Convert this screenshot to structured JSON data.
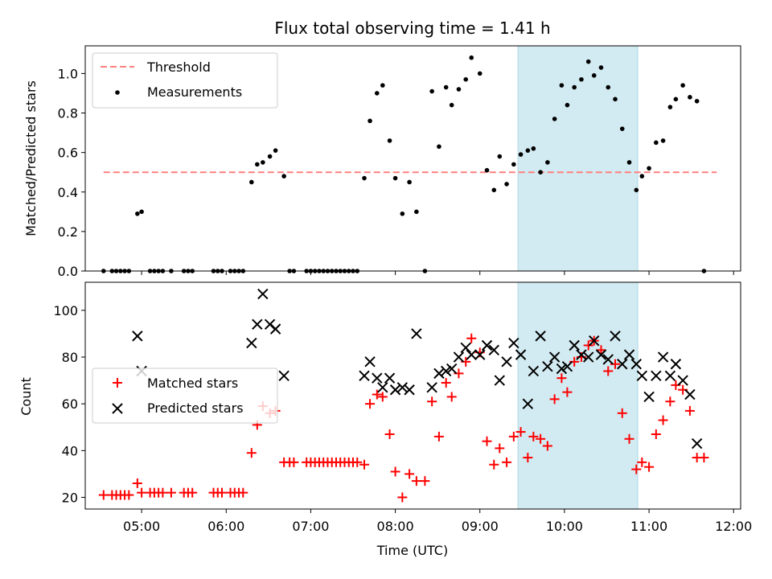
{
  "chart_data": [
    {
      "type": "scatter",
      "title": "Flux total observing time = 1.41 h",
      "xlabel": "",
      "ylabel": "Matched/Predicted stars",
      "xlim": [
        "04:20",
        "12:05"
      ],
      "ylim": [
        0,
        1.14
      ],
      "yticks": [
        "0.0",
        "0.2",
        "0.4",
        "0.6",
        "0.8",
        "1.0"
      ],
      "highlight_span": {
        "start": "09:27",
        "end": "10:52",
        "color": "#add8e6"
      },
      "threshold": {
        "name": "Threshold",
        "value": 0.5,
        "x_start": "04:33",
        "x_end": "11:48",
        "color": "#ff7f7f",
        "style": "dashed"
      },
      "legend": {
        "placement": "upper-left",
        "entries": [
          "Threshold",
          "Measurements"
        ]
      },
      "series": [
        {
          "name": "Measurements",
          "color": "#000000",
          "marker": "dot",
          "points": [
            [
              "04:33",
              0.0
            ],
            [
              "04:39",
              0.0
            ],
            [
              "04:42",
              0.0
            ],
            [
              "04:45",
              0.0
            ],
            [
              "04:48",
              0.0
            ],
            [
              "04:51",
              0.0
            ],
            [
              "04:57",
              0.29
            ],
            [
              "05:00",
              0.3
            ],
            [
              "05:06",
              0.0
            ],
            [
              "05:09",
              0.0
            ],
            [
              "05:12",
              0.0
            ],
            [
              "05:15",
              0.0
            ],
            [
              "05:21",
              0.0
            ],
            [
              "05:30",
              0.0
            ],
            [
              "05:33",
              0.0
            ],
            [
              "05:36",
              0.0
            ],
            [
              "05:51",
              0.0
            ],
            [
              "05:54",
              0.0
            ],
            [
              "05:57",
              0.0
            ],
            [
              "06:03",
              0.0
            ],
            [
              "06:06",
              0.0
            ],
            [
              "06:09",
              0.0
            ],
            [
              "06:12",
              0.0
            ],
            [
              "06:18",
              0.45
            ],
            [
              "06:22",
              0.54
            ],
            [
              "06:26",
              0.55
            ],
            [
              "06:31",
              0.58
            ],
            [
              "06:35",
              0.61
            ],
            [
              "06:41",
              0.48
            ],
            [
              "06:45",
              0.0
            ],
            [
              "06:48",
              0.0
            ],
            [
              "06:57",
              0.0
            ],
            [
              "07:00",
              0.0
            ],
            [
              "07:03",
              0.0
            ],
            [
              "07:06",
              0.0
            ],
            [
              "07:09",
              0.0
            ],
            [
              "07:12",
              0.0
            ],
            [
              "07:15",
              0.0
            ],
            [
              "07:18",
              0.0
            ],
            [
              "07:21",
              0.0
            ],
            [
              "07:24",
              0.0
            ],
            [
              "07:27",
              0.0
            ],
            [
              "07:30",
              0.0
            ],
            [
              "07:33",
              0.0
            ],
            [
              "07:38",
              0.47
            ],
            [
              "07:42",
              0.76
            ],
            [
              "07:47",
              0.9
            ],
            [
              "07:51",
              0.94
            ],
            [
              "07:56",
              0.66
            ],
            [
              "08:00",
              0.47
            ],
            [
              "08:05",
              0.29
            ],
            [
              "08:10",
              0.45
            ],
            [
              "08:15",
              0.3
            ],
            [
              "08:21",
              0.0
            ],
            [
              "08:26",
              0.91
            ],
            [
              "08:31",
              0.63
            ],
            [
              "08:36",
              0.93
            ],
            [
              "08:40",
              0.84
            ],
            [
              "08:45",
              0.92
            ],
            [
              "08:50",
              0.97
            ],
            [
              "08:54",
              1.08
            ],
            [
              "09:00",
              1.0
            ],
            [
              "09:05",
              0.51
            ],
            [
              "09:10",
              0.41
            ],
            [
              "09:14",
              0.58
            ],
            [
              "09:19",
              0.44
            ],
            [
              "09:24",
              0.54
            ],
            [
              "09:29",
              0.59
            ],
            [
              "09:34",
              0.61
            ],
            [
              "09:38",
              0.62
            ],
            [
              "09:43",
              0.5
            ],
            [
              "09:48",
              0.55
            ],
            [
              "09:53",
              0.77
            ],
            [
              "09:58",
              0.94
            ],
            [
              "10:02",
              0.84
            ],
            [
              "10:07",
              0.93
            ],
            [
              "10:12",
              0.97
            ],
            [
              "10:17",
              1.06
            ],
            [
              "10:21",
              0.99
            ],
            [
              "10:26",
              1.03
            ],
            [
              "10:31",
              0.93
            ],
            [
              "10:36",
              0.87
            ],
            [
              "10:41",
              0.72
            ],
            [
              "10:46",
              0.55
            ],
            [
              "10:51",
              0.41
            ],
            [
              "10:55",
              0.48
            ],
            [
              "11:00",
              0.52
            ],
            [
              "11:05",
              0.65
            ],
            [
              "11:10",
              0.66
            ],
            [
              "11:15",
              0.83
            ],
            [
              "11:19",
              0.87
            ],
            [
              "11:24",
              0.94
            ],
            [
              "11:29",
              0.88
            ],
            [
              "11:34",
              0.86
            ],
            [
              "11:39",
              0.0
            ]
          ]
        }
      ]
    },
    {
      "type": "scatter",
      "xlabel": "Time (UTC)",
      "ylabel": "Count",
      "xlim": [
        "04:20",
        "12:05"
      ],
      "ylim": [
        15,
        112
      ],
      "yticks": [
        "20",
        "40",
        "60",
        "80",
        "100"
      ],
      "xticks": [
        "05:00",
        "06:00",
        "07:00",
        "08:00",
        "09:00",
        "10:00",
        "11:00",
        "12:00"
      ],
      "highlight_span": {
        "start": "09:27",
        "end": "10:52",
        "color": "#add8e6"
      },
      "legend": {
        "placement": "center-left",
        "entries": [
          "Matched stars",
          "Predicted stars"
        ]
      },
      "series": [
        {
          "name": "Matched stars",
          "color": "#ff0000",
          "marker": "plus",
          "points": [
            [
              "04:33",
              21
            ],
            [
              "04:39",
              21
            ],
            [
              "04:42",
              21
            ],
            [
              "04:45",
              21
            ],
            [
              "04:48",
              21
            ],
            [
              "04:51",
              21
            ],
            [
              "04:57",
              26
            ],
            [
              "05:00",
              22
            ],
            [
              "05:06",
              22
            ],
            [
              "05:09",
              22
            ],
            [
              "05:12",
              22
            ],
            [
              "05:15",
              22
            ],
            [
              "05:21",
              22
            ],
            [
              "05:30",
              22
            ],
            [
              "05:33",
              22
            ],
            [
              "05:36",
              22
            ],
            [
              "05:51",
              22
            ],
            [
              "05:54",
              22
            ],
            [
              "05:57",
              22
            ],
            [
              "06:03",
              22
            ],
            [
              "06:06",
              22
            ],
            [
              "06:09",
              22
            ],
            [
              "06:12",
              22
            ],
            [
              "06:18",
              39
            ],
            [
              "06:22",
              51
            ],
            [
              "06:26",
              59
            ],
            [
              "06:31",
              56
            ],
            [
              "06:35",
              57
            ],
            [
              "06:41",
              35
            ],
            [
              "06:45",
              35
            ],
            [
              "06:48",
              35
            ],
            [
              "06:57",
              35
            ],
            [
              "07:00",
              35
            ],
            [
              "07:03",
              35
            ],
            [
              "07:06",
              35
            ],
            [
              "07:09",
              35
            ],
            [
              "07:12",
              35
            ],
            [
              "07:15",
              35
            ],
            [
              "07:18",
              35
            ],
            [
              "07:21",
              35
            ],
            [
              "07:24",
              35
            ],
            [
              "07:27",
              35
            ],
            [
              "07:30",
              35
            ],
            [
              "07:33",
              35
            ],
            [
              "07:38",
              34
            ],
            [
              "07:42",
              60
            ],
            [
              "07:47",
              64
            ],
            [
              "07:51",
              63
            ],
            [
              "07:56",
              47
            ],
            [
              "08:00",
              31
            ],
            [
              "08:05",
              20
            ],
            [
              "08:10",
              30
            ],
            [
              "08:15",
              27
            ],
            [
              "08:21",
              27
            ],
            [
              "08:26",
              61
            ],
            [
              "08:31",
              46
            ],
            [
              "08:36",
              69
            ],
            [
              "08:40",
              63
            ],
            [
              "08:45",
              73
            ],
            [
              "08:50",
              78
            ],
            [
              "08:54",
              88
            ],
            [
              "09:00",
              82
            ],
            [
              "09:05",
              44
            ],
            [
              "09:10",
              34
            ],
            [
              "09:14",
              41
            ],
            [
              "09:19",
              35
            ],
            [
              "09:24",
              46
            ],
            [
              "09:29",
              48
            ],
            [
              "09:34",
              37
            ],
            [
              "09:38",
              46
            ],
            [
              "09:43",
              45
            ],
            [
              "09:48",
              42
            ],
            [
              "09:53",
              62
            ],
            [
              "09:58",
              71
            ],
            [
              "10:02",
              65
            ],
            [
              "10:07",
              78
            ],
            [
              "10:12",
              80
            ],
            [
              "10:17",
              85
            ],
            [
              "10:21",
              87
            ],
            [
              "10:26",
              83
            ],
            [
              "10:31",
              74
            ],
            [
              "10:36",
              77
            ],
            [
              "10:41",
              56
            ],
            [
              "10:46",
              45
            ],
            [
              "10:51",
              32
            ],
            [
              "10:55",
              35
            ],
            [
              "11:00",
              33
            ],
            [
              "11:05",
              47
            ],
            [
              "11:10",
              53
            ],
            [
              "11:15",
              61
            ],
            [
              "11:19",
              68
            ],
            [
              "11:24",
              66
            ],
            [
              "11:29",
              57
            ],
            [
              "11:34",
              37
            ],
            [
              "11:39",
              37
            ]
          ]
        },
        {
          "name": "Predicted stars",
          "color": "#000000",
          "marker": "x",
          "points": [
            [
              "04:57",
              89
            ],
            [
              "05:00",
              74
            ],
            [
              "06:18",
              86
            ],
            [
              "06:22",
              94
            ],
            [
              "06:26",
              107
            ],
            [
              "06:31",
              94
            ],
            [
              "06:35",
              92
            ],
            [
              "06:41",
              72
            ],
            [
              "07:38",
              72
            ],
            [
              "07:42",
              78
            ],
            [
              "07:47",
              71
            ],
            [
              "07:51",
              67
            ],
            [
              "07:56",
              71
            ],
            [
              "08:00",
              66
            ],
            [
              "08:05",
              67
            ],
            [
              "08:10",
              66
            ],
            [
              "08:15",
              90
            ],
            [
              "08:26",
              67
            ],
            [
              "08:31",
              73
            ],
            [
              "08:36",
              74
            ],
            [
              "08:40",
              75
            ],
            [
              "08:45",
              80
            ],
            [
              "08:50",
              84
            ],
            [
              "08:54",
              81
            ],
            [
              "09:00",
              81
            ],
            [
              "09:05",
              85
            ],
            [
              "09:10",
              83
            ],
            [
              "09:14",
              70
            ],
            [
              "09:19",
              78
            ],
            [
              "09:24",
              86
            ],
            [
              "09:29",
              81
            ],
            [
              "09:34",
              60
            ],
            [
              "09:38",
              74
            ],
            [
              "09:43",
              89
            ],
            [
              "09:48",
              76
            ],
            [
              "09:53",
              80
            ],
            [
              "09:58",
              75
            ],
            [
              "10:02",
              76
            ],
            [
              "10:07",
              85
            ],
            [
              "10:12",
              81
            ],
            [
              "10:17",
              80
            ],
            [
              "10:21",
              87
            ],
            [
              "10:26",
              81
            ],
            [
              "10:31",
              79
            ],
            [
              "10:36",
              89
            ],
            [
              "10:41",
              77
            ],
            [
              "10:46",
              81
            ],
            [
              "10:51",
              77
            ],
            [
              "10:55",
              72
            ],
            [
              "11:00",
              63
            ],
            [
              "11:05",
              72
            ],
            [
              "11:10",
              80
            ],
            [
              "11:15",
              72
            ],
            [
              "11:19",
              77
            ],
            [
              "11:24",
              70
            ],
            [
              "11:29",
              64
            ],
            [
              "11:34",
              43
            ]
          ]
        }
      ]
    }
  ]
}
